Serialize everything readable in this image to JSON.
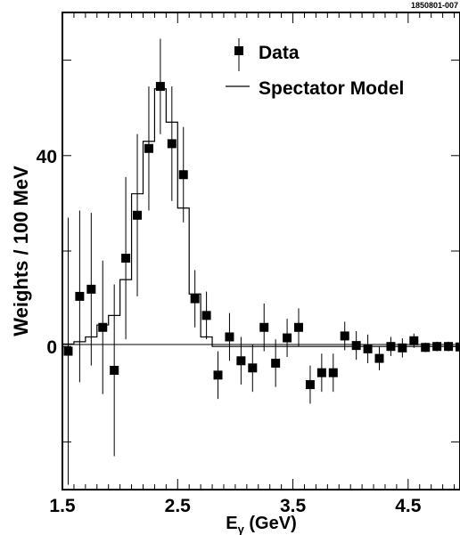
{
  "figure_tag": "1850801-007",
  "chart_data": {
    "type": "scatter",
    "xlabel": "Eγ (GeV)",
    "ylabel": "Weights / 100 MeV",
    "xlim": [
      1.5,
      4.95
    ],
    "ylim": [
      -30,
      70
    ],
    "x_tick_labels": [
      {
        "x": 1.5,
        "label": "1.5"
      },
      {
        "x": 2.5,
        "label": "2.5"
      },
      {
        "x": 3.5,
        "label": "3.5"
      },
      {
        "x": 4.5,
        "label": "4.5"
      }
    ],
    "y_tick_labels": [
      {
        "y": 0,
        "label": "0"
      },
      {
        "y": 40,
        "label": "40"
      }
    ],
    "legend": [
      {
        "name": "Data",
        "marker": "square-with-errorbar"
      },
      {
        "name": "Spectator Model",
        "marker": "line"
      }
    ],
    "series": [
      {
        "name": "Data",
        "x": [
          1.55,
          1.65,
          1.75,
          1.85,
          1.95,
          2.05,
          2.15,
          2.25,
          2.35,
          2.45,
          2.55,
          2.65,
          2.75,
          2.85,
          2.95,
          3.05,
          3.15,
          3.25,
          3.35,
          3.45,
          3.55,
          3.65,
          3.75,
          3.85,
          3.95,
          4.05,
          4.15,
          4.25,
          4.35,
          4.45,
          4.55,
          4.65,
          4.75,
          4.85,
          4.95
        ],
        "y": [
          -1,
          10.5,
          12,
          4,
          -5,
          18.5,
          27.5,
          41.5,
          54.5,
          42.5,
          36,
          10,
          6.5,
          -6,
          2,
          -3,
          -4.5,
          4,
          -3.5,
          1.8,
          4,
          -8,
          -5.5,
          -5.5,
          2.2,
          0.2,
          -0.5,
          -2.5,
          0,
          -0.3,
          1.2,
          -0.2,
          0,
          0,
          -0.1
        ],
        "yerr": [
          28,
          18,
          16,
          14,
          18,
          17,
          17,
          13,
          10,
          12,
          10,
          6,
          5,
          5,
          5,
          5,
          5,
          5,
          5,
          4,
          4,
          4,
          4,
          4,
          3,
          3,
          3,
          2.5,
          2,
          2,
          1.5,
          1,
          1,
          1,
          1
        ]
      },
      {
        "name": "Spectator Model",
        "type": "step",
        "bin_edges": [
          1.5,
          1.6,
          1.7,
          1.8,
          1.9,
          2.0,
          2.1,
          2.2,
          2.3,
          2.4,
          2.5,
          2.6,
          2.7,
          2.8,
          4.95
        ],
        "values": [
          0.5,
          1,
          2,
          4.5,
          6.5,
          14,
          32,
          43,
          54,
          47,
          29,
          11,
          2,
          0
        ]
      }
    ]
  }
}
